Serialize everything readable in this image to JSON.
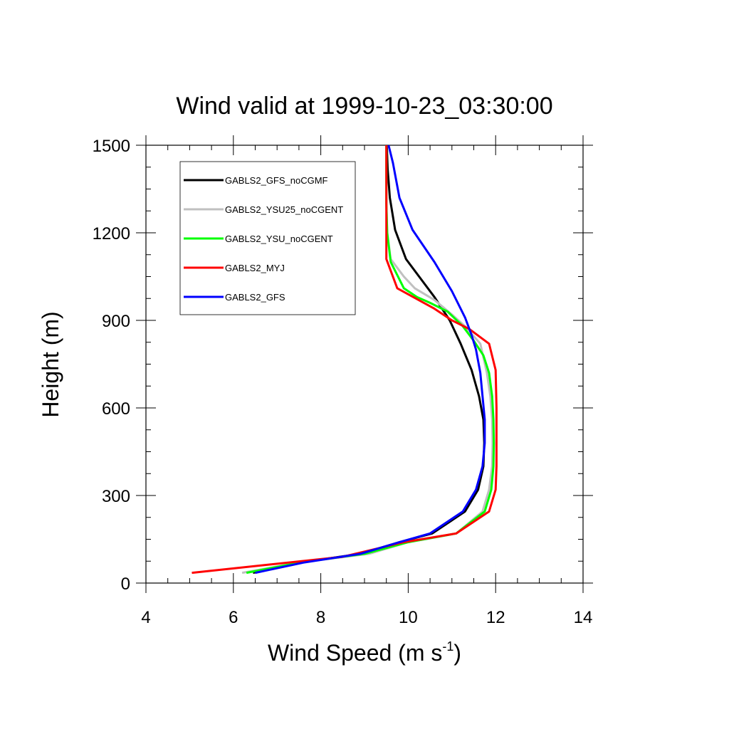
{
  "chart_data": {
    "type": "line",
    "title": "Wind valid at 1999-10-23_03:30:00",
    "xlabel": "Wind Speed (m s",
    "xlabel_sup": "-1",
    "xlabel_end": ")",
    "ylabel": "Height (m)",
    "xlim": [
      4,
      14
    ],
    "ylim": [
      0,
      1500
    ],
    "xticks": [
      4,
      6,
      8,
      10,
      12,
      14
    ],
    "yticks": [
      0,
      300,
      600,
      900,
      1200,
      1500
    ],
    "xtick_labels": [
      "4",
      "6",
      "8",
      "10",
      "12",
      "14"
    ],
    "ytick_labels": [
      "0",
      "300",
      "600",
      "900",
      "1200",
      "1500"
    ],
    "legend_position": "top-left",
    "grid": false,
    "series": [
      {
        "name": "GABLS2_GFS_noCGMF",
        "color": "#000000",
        "points": [
          [
            6.45,
            35
          ],
          [
            7.5,
            70
          ],
          [
            8.9,
            100
          ],
          [
            9.8,
            140
          ],
          [
            10.55,
            170
          ],
          [
            11.3,
            245
          ],
          [
            11.6,
            320
          ],
          [
            11.72,
            400
          ],
          [
            11.74,
            480
          ],
          [
            11.72,
            560
          ],
          [
            11.62,
            640
          ],
          [
            11.45,
            730
          ],
          [
            11.2,
            820
          ],
          [
            10.95,
            900
          ],
          [
            10.6,
            980
          ],
          [
            10.3,
            1040
          ],
          [
            9.95,
            1110
          ],
          [
            9.7,
            1210
          ],
          [
            9.58,
            1320
          ],
          [
            9.53,
            1420
          ],
          [
            9.51,
            1500
          ]
        ]
      },
      {
        "name": "GABLS2_YSU25_noCGENT",
        "color": "#c0c0c0",
        "points": [
          [
            6.2,
            35
          ],
          [
            7.5,
            70
          ],
          [
            9.1,
            100
          ],
          [
            10.0,
            140
          ],
          [
            11.1,
            170
          ],
          [
            11.7,
            245
          ],
          [
            11.85,
            320
          ],
          [
            11.92,
            400
          ],
          [
            11.93,
            480
          ],
          [
            11.92,
            560
          ],
          [
            11.88,
            640
          ],
          [
            11.8,
            720
          ],
          [
            11.65,
            820
          ],
          [
            11.3,
            880
          ],
          [
            11.0,
            920
          ],
          [
            10.6,
            970
          ],
          [
            10.15,
            1010
          ],
          [
            9.9,
            1050
          ],
          [
            9.6,
            1110
          ],
          [
            9.52,
            1200
          ],
          [
            9.5,
            1300
          ],
          [
            9.5,
            1500
          ]
        ]
      },
      {
        "name": "GABLS2_YSU_noCGENT",
        "color": "#00ff00",
        "points": [
          [
            6.3,
            35
          ],
          [
            7.5,
            70
          ],
          [
            9.0,
            100
          ],
          [
            10.0,
            140
          ],
          [
            11.1,
            170
          ],
          [
            11.75,
            245
          ],
          [
            11.9,
            320
          ],
          [
            11.95,
            400
          ],
          [
            11.96,
            480
          ],
          [
            11.95,
            560
          ],
          [
            11.92,
            640
          ],
          [
            11.85,
            720
          ],
          [
            11.72,
            780
          ],
          [
            11.5,
            830
          ],
          [
            11.25,
            880
          ],
          [
            10.9,
            930
          ],
          [
            10.5,
            960
          ],
          [
            10.2,
            980
          ],
          [
            9.9,
            1010
          ],
          [
            9.6,
            1100
          ],
          [
            9.52,
            1200
          ],
          [
            9.5,
            1300
          ],
          [
            9.5,
            1500
          ]
        ]
      },
      {
        "name": "GABLS2_MYJ",
        "color": "#ff0000",
        "points": [
          [
            5.05,
            35
          ],
          [
            8.5,
            90
          ],
          [
            9.9,
            140
          ],
          [
            11.1,
            170
          ],
          [
            11.85,
            245
          ],
          [
            12.0,
            320
          ],
          [
            12.02,
            400
          ],
          [
            12.02,
            500
          ],
          [
            12.02,
            600
          ],
          [
            12.0,
            730
          ],
          [
            11.85,
            820
          ],
          [
            11.4,
            870
          ],
          [
            11.0,
            900
          ],
          [
            10.6,
            940
          ],
          [
            9.75,
            1010
          ],
          [
            9.5,
            1110
          ],
          [
            9.5,
            1200
          ],
          [
            9.5,
            1300
          ],
          [
            9.5,
            1500
          ]
        ]
      },
      {
        "name": "GABLS2_GFS",
        "color": "#0000ff",
        "points": [
          [
            6.5,
            35
          ],
          [
            7.6,
            70
          ],
          [
            8.9,
            100
          ],
          [
            9.8,
            140
          ],
          [
            10.5,
            170
          ],
          [
            11.25,
            245
          ],
          [
            11.55,
            320
          ],
          [
            11.7,
            400
          ],
          [
            11.75,
            480
          ],
          [
            11.75,
            560
          ],
          [
            11.7,
            640
          ],
          [
            11.65,
            720
          ],
          [
            11.55,
            800
          ],
          [
            11.45,
            850
          ],
          [
            11.3,
            910
          ],
          [
            11.0,
            1000
          ],
          [
            10.6,
            1100
          ],
          [
            10.1,
            1210
          ],
          [
            9.8,
            1320
          ],
          [
            9.65,
            1440
          ],
          [
            9.55,
            1500
          ]
        ]
      }
    ]
  }
}
